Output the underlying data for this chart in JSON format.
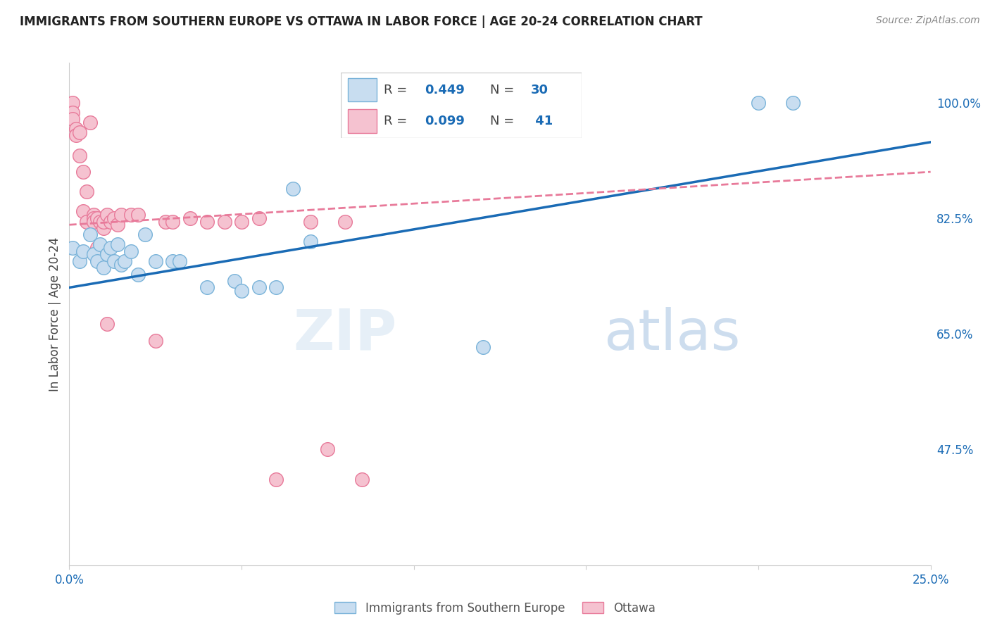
{
  "title": "IMMIGRANTS FROM SOUTHERN EUROPE VS OTTAWA IN LABOR FORCE | AGE 20-24 CORRELATION CHART",
  "source": "Source: ZipAtlas.com",
  "ylabel": "In Labor Force | Age 20-24",
  "x_min": 0.0,
  "x_max": 0.25,
  "y_min": 0.3,
  "y_max": 1.06,
  "x_ticks": [
    0.0,
    0.05,
    0.1,
    0.15,
    0.2,
    0.25
  ],
  "y_ticks": [
    0.475,
    0.65,
    0.825,
    1.0
  ],
  "y_tick_labels": [
    "47.5%",
    "65.0%",
    "82.5%",
    "100.0%"
  ],
  "blue_series": {
    "label": "Immigrants from Southern Europe",
    "color": "#c8ddf0",
    "edge_color": "#7ab3d9",
    "R": "0.449",
    "N": "30",
    "x": [
      0.001,
      0.003,
      0.004,
      0.006,
      0.007,
      0.008,
      0.009,
      0.01,
      0.011,
      0.012,
      0.013,
      0.014,
      0.015,
      0.016,
      0.018,
      0.02,
      0.022,
      0.025,
      0.03,
      0.032,
      0.04,
      0.048,
      0.05,
      0.055,
      0.06,
      0.065,
      0.07,
      0.12,
      0.2,
      0.21
    ],
    "y": [
      0.78,
      0.76,
      0.775,
      0.8,
      0.77,
      0.76,
      0.785,
      0.75,
      0.77,
      0.78,
      0.76,
      0.785,
      0.755,
      0.76,
      0.775,
      0.74,
      0.8,
      0.76,
      0.76,
      0.76,
      0.72,
      0.73,
      0.715,
      0.72,
      0.72,
      0.87,
      0.79,
      0.63,
      1.0,
      1.0
    ],
    "trend_x": [
      0.0,
      0.25
    ],
    "trend_y": [
      0.72,
      0.94
    ],
    "trend_color": "#1a6bb5",
    "trend_linestyle": "solid"
  },
  "pink_series": {
    "label": "Ottawa",
    "color": "#f5c2d0",
    "edge_color": "#e87a9a",
    "R": "0.099",
    "N": "41",
    "x": [
      0.001,
      0.001,
      0.001,
      0.002,
      0.002,
      0.003,
      0.003,
      0.004,
      0.004,
      0.005,
      0.005,
      0.006,
      0.007,
      0.007,
      0.007,
      0.008,
      0.008,
      0.009,
      0.01,
      0.01,
      0.011,
      0.011,
      0.012,
      0.013,
      0.014,
      0.015,
      0.018,
      0.02,
      0.025,
      0.028,
      0.03,
      0.035,
      0.04,
      0.045,
      0.05,
      0.055,
      0.06,
      0.07,
      0.075,
      0.08,
      0.085
    ],
    "y": [
      1.0,
      0.985,
      0.975,
      0.96,
      0.95,
      0.955,
      0.92,
      0.895,
      0.835,
      0.865,
      0.82,
      0.97,
      0.83,
      0.825,
      0.82,
      0.825,
      0.78,
      0.82,
      0.81,
      0.82,
      0.83,
      0.665,
      0.82,
      0.825,
      0.815,
      0.83,
      0.83,
      0.83,
      0.64,
      0.82,
      0.82,
      0.825,
      0.82,
      0.82,
      0.82,
      0.825,
      0.43,
      0.82,
      0.475,
      0.82,
      0.43
    ],
    "trend_x": [
      0.0,
      0.25
    ],
    "trend_y": [
      0.815,
      0.895
    ],
    "trend_color": "#e87a9a",
    "trend_linestyle": "dashed"
  },
  "legend_color": "#1a6bb5",
  "background_color": "#ffffff",
  "grid_color": "#dddddd",
  "title_color": "#222222",
  "tick_label_color": "#1a6bb5"
}
